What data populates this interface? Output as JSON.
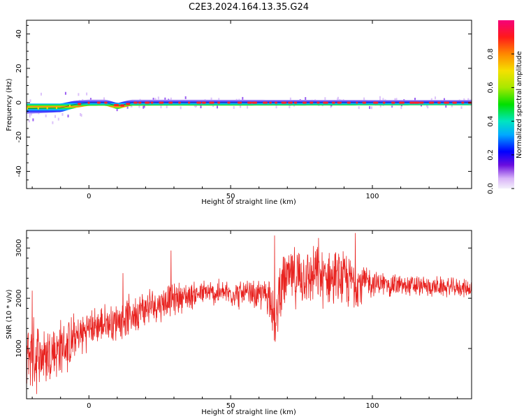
{
  "title": "C2E3.2024.164.13.35.G24",
  "chart_data": [
    {
      "type": "heatmap",
      "xlabel": "Height of straight line (km)",
      "ylabel": "Frequency (Hz)",
      "xlim": [
        -22,
        135
      ],
      "ylim": [
        -50,
        48
      ],
      "xticks": [
        0,
        50,
        100
      ],
      "yticks": [
        -40,
        -20,
        0,
        20,
        40
      ],
      "colorbar": {
        "label": "Normalized spectral amplitude",
        "range": [
          0.0,
          1.0
        ],
        "ticks": [
          0.0,
          0.2,
          0.4,
          0.6,
          0.8
        ]
      },
      "band_center_hz": [
        {
          "x": -22,
          "y": -3.5
        },
        {
          "x": -10,
          "y": -3.0
        },
        {
          "x": -5,
          "y": -1.0
        },
        {
          "x": 0,
          "y": 0.0
        },
        {
          "x": 6,
          "y": 0.0
        },
        {
          "x": 10,
          "y": -2.0
        },
        {
          "x": 15,
          "y": 0.0
        },
        {
          "x": 135,
          "y": 0.0
        }
      ],
      "band_halfwidth_hz": [
        {
          "x": -22,
          "y": 3.0
        },
        {
          "x": -10,
          "y": 2.5
        },
        {
          "x": 0,
          "y": 1.8
        },
        {
          "x": 135,
          "y": 1.5
        }
      ],
      "spectral_peak_amplitude": 0.9
    },
    {
      "type": "line",
      "xlabel": "Height of straight line (km)",
      "ylabel": "SNR (10 * v/v)",
      "xlim": [
        -22,
        135
      ],
      "ylim": [
        0,
        3350
      ],
      "xticks": [
        0,
        50,
        100
      ],
      "yticks": [
        1000,
        2000,
        3000
      ],
      "series": [
        {
          "color": "#e8221f",
          "trend": [
            {
              "x": -22,
              "y": 900
            },
            {
              "x": -15,
              "y": 850
            },
            {
              "x": -8,
              "y": 1050
            },
            {
              "x": 0,
              "y": 1400
            },
            {
              "x": 10,
              "y": 1550
            },
            {
              "x": 20,
              "y": 1800
            },
            {
              "x": 30,
              "y": 2000
            },
            {
              "x": 40,
              "y": 2100
            },
            {
              "x": 50,
              "y": 2100
            },
            {
              "x": 60,
              "y": 2050
            },
            {
              "x": 64,
              "y": 2100
            },
            {
              "x": 66,
              "y": 1300
            },
            {
              "x": 67,
              "y": 2200
            },
            {
              "x": 70,
              "y": 2400
            },
            {
              "x": 80,
              "y": 2450
            },
            {
              "x": 90,
              "y": 2350
            },
            {
              "x": 100,
              "y": 2300
            },
            {
              "x": 110,
              "y": 2250
            },
            {
              "x": 120,
              "y": 2230
            },
            {
              "x": 135,
              "y": 2200
            }
          ],
          "spread": [
            {
              "x": -22,
              "y": 900
            },
            {
              "x": -10,
              "y": 700
            },
            {
              "x": 0,
              "y": 450
            },
            {
              "x": 20,
              "y": 450
            },
            {
              "x": 40,
              "y": 300
            },
            {
              "x": 60,
              "y": 350
            },
            {
              "x": 68,
              "y": 700
            },
            {
              "x": 95,
              "y": 650
            },
            {
              "x": 100,
              "y": 300
            },
            {
              "x": 135,
              "y": 200
            }
          ],
          "spikes": [
            {
              "x": 65.5,
              "y": 3250
            },
            {
              "x": 94,
              "y": 3300
            },
            {
              "x": 81,
              "y": 3200
            },
            {
              "x": 29,
              "y": 2950
            },
            {
              "x": 12,
              "y": 2500
            },
            {
              "x": -20,
              "y": 2150
            }
          ]
        }
      ]
    }
  ]
}
